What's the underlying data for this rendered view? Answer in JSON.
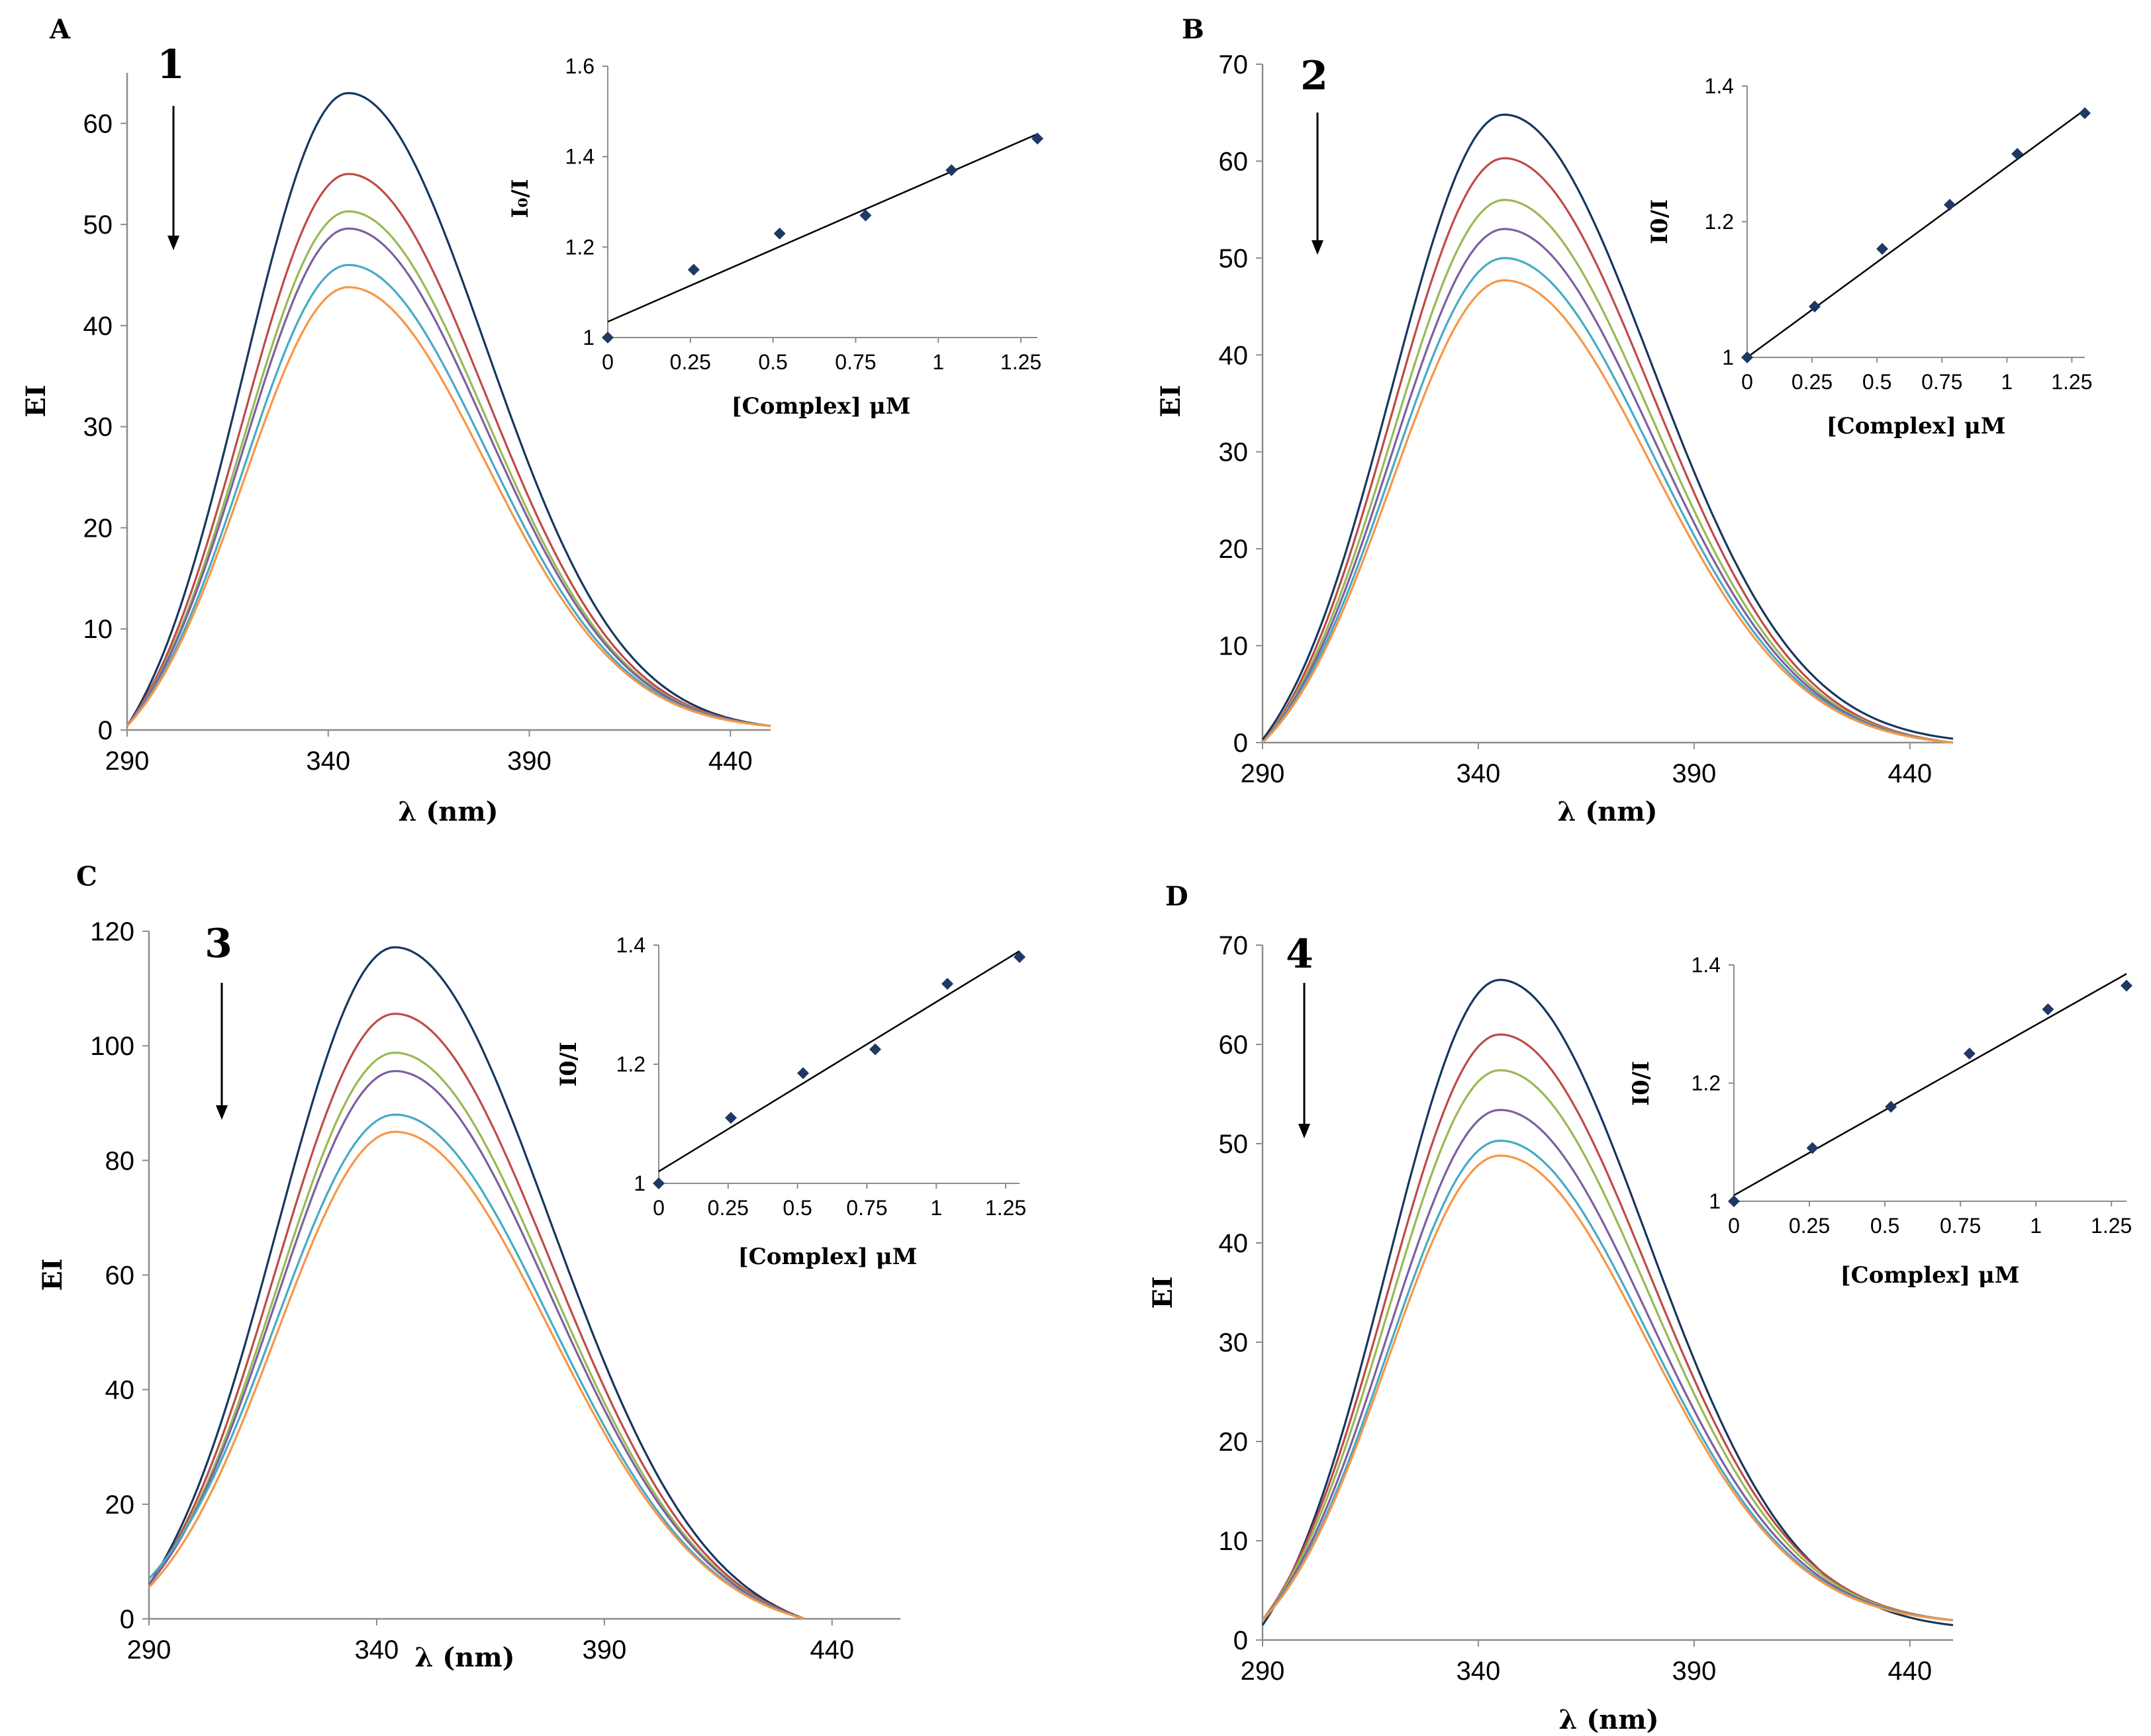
{
  "colors": {
    "series": [
      "#17375e",
      "#be4b48",
      "#98b954",
      "#7d5fa0",
      "#46aac5",
      "#f79646"
    ],
    "marker": "#1f3864",
    "axis": "#8c8c8c",
    "fit_line": "#000000"
  },
  "chart_data": [
    {
      "panel_label": "A",
      "compound_label": "1",
      "type": "line",
      "xlabel": "λ (nm)",
      "ylabel": "EI",
      "xlim": [
        290,
        450
      ],
      "ylim": [
        0,
        65
      ],
      "x_ticks": [
        "290",
        "340",
        "390",
        "440"
      ],
      "y_ticks": [
        "0",
        "10",
        "20",
        "30",
        "40",
        "50",
        "60"
      ],
      "arrow": "down",
      "peak_x": 345,
      "start_x": 290,
      "end_x": 450,
      "peaks": [
        63,
        55,
        51.3,
        49.6,
        46,
        43.8
      ],
      "start_values": [
        0.4,
        0.4,
        0.4,
        0.4,
        0.4,
        0.4
      ],
      "end_values": [
        0.4,
        0.4,
        0.4,
        0.4,
        0.4,
        0.4
      ],
      "inset": {
        "type": "scatter",
        "xlabel": "[Complex] μM",
        "ylabel": "I₀/I",
        "xlim": [
          0,
          1.3
        ],
        "ylim": [
          1,
          1.6
        ],
        "x_ticks": [
          "0",
          "0.25",
          "0.5",
          "0.75",
          "1",
          "1.25"
        ],
        "y_ticks": [
          "1",
          "1.2",
          "1.4",
          "1.6"
        ],
        "x": [
          0,
          0.26,
          0.52,
          0.78,
          1.04,
          1.3
        ],
        "y": [
          1.0,
          1.15,
          1.23,
          1.27,
          1.37,
          1.44
        ],
        "fit": [
          1.035,
          1.45
        ]
      }
    },
    {
      "panel_label": "B",
      "compound_label": "2",
      "type": "line",
      "xlabel": "λ (nm)",
      "ylabel": "EI",
      "xlim": [
        290,
        450
      ],
      "ylim": [
        0,
        70
      ],
      "x_ticks": [
        "290",
        "340",
        "390",
        "440"
      ],
      "y_ticks": [
        "0",
        "10",
        "20",
        "30",
        "40",
        "50",
        "60",
        "70"
      ],
      "arrow": "down",
      "peak_x": 346,
      "start_x": 290,
      "end_x": 450,
      "peaks": [
        64.8,
        60.3,
        56,
        53,
        50,
        47.7
      ],
      "start_values": [
        0.3,
        0,
        0,
        0,
        0,
        0
      ],
      "end_values": [
        0.4,
        0,
        0,
        0,
        0,
        0
      ],
      "inset": {
        "type": "scatter",
        "xlabel": "[Complex] μM",
        "ylabel": "I0/I",
        "xlim": [
          0,
          1.3
        ],
        "ylim": [
          1,
          1.4
        ],
        "x_ticks": [
          "0",
          "0.25",
          "0.5",
          "0.75",
          "1",
          "1.25"
        ],
        "y_ticks": [
          "1",
          "1.2",
          "1.4"
        ],
        "x": [
          0,
          0.26,
          0.52,
          0.78,
          1.04,
          1.3
        ],
        "y": [
          1.0,
          1.075,
          1.16,
          1.225,
          1.3,
          1.36
        ],
        "fit": [
          1.0,
          1.365
        ]
      }
    },
    {
      "panel_label": "C",
      "compound_label": "3",
      "type": "line",
      "xlabel": "λ (nm)",
      "ylabel": "EI",
      "xlim": [
        290,
        455
      ],
      "ylim": [
        0,
        120
      ],
      "x_ticks": [
        "290",
        "340",
        "390",
        "440"
      ],
      "y_ticks": [
        "0",
        "20",
        "40",
        "60",
        "80",
        "100",
        "120"
      ],
      "arrow": "down",
      "peak_x": 344,
      "start_x": 290,
      "end_x": 434,
      "peaks": [
        117.2,
        105.6,
        98.8,
        95.6,
        88,
        85
      ],
      "start_values": [
        6,
        6,
        6,
        6,
        7,
        5.5
      ],
      "end_values": [
        0,
        0,
        0,
        0,
        0,
        0
      ],
      "inset": {
        "type": "scatter",
        "xlabel": "[Complex] μM",
        "ylabel": "I0/I",
        "xlim": [
          0,
          1.3
        ],
        "ylim": [
          1,
          1.4
        ],
        "x_ticks": [
          "0",
          "0.25",
          "0.5",
          "0.75",
          "1",
          "1.25"
        ],
        "y_ticks": [
          "1",
          "1.2",
          "1.4"
        ],
        "x": [
          0,
          0.26,
          0.52,
          0.78,
          1.04,
          1.3
        ],
        "y": [
          1.0,
          1.11,
          1.185,
          1.225,
          1.335,
          1.38
        ],
        "fit": [
          1.02,
          1.39
        ]
      }
    },
    {
      "panel_label": "D",
      "compound_label": "4",
      "type": "line",
      "xlabel": "λ (nm)",
      "ylabel": "EI",
      "xlim": [
        290,
        450
      ],
      "ylim": [
        0,
        70
      ],
      "x_ticks": [
        "290",
        "340",
        "390",
        "440"
      ],
      "y_ticks": [
        "0",
        "10",
        "20",
        "30",
        "40",
        "50",
        "60",
        "70"
      ],
      "arrow": "down",
      "peak_x": 345,
      "start_x": 290,
      "end_x": 450,
      "peaks": [
        66.5,
        61,
        57.4,
        53.4,
        50.3,
        48.8
      ],
      "start_values": [
        1.5,
        2,
        2,
        2,
        2,
        2
      ],
      "end_values": [
        1.5,
        2,
        2,
        2,
        2,
        2
      ],
      "inset": {
        "type": "scatter",
        "xlabel": "[Complex] μM",
        "ylabel": "I0/I",
        "xlim": [
          0,
          1.3
        ],
        "ylim": [
          1,
          1.4
        ],
        "x_ticks": [
          "0",
          "0.25",
          "0.5",
          "0.75",
          "1",
          "1.25"
        ],
        "y_ticks": [
          "1",
          "1.2",
          "1.4"
        ],
        "x": [
          0,
          0.26,
          0.52,
          0.78,
          1.04,
          1.3
        ],
        "y": [
          1.0,
          1.09,
          1.16,
          1.25,
          1.325,
          1.365
        ],
        "fit": [
          1.01,
          1.385
        ]
      }
    }
  ]
}
